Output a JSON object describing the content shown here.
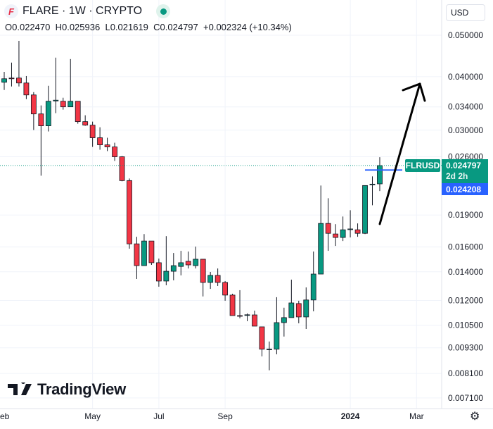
{
  "header": {
    "symbol_title": "FLARE · 1W · CRYPTO",
    "logo_letter": "F",
    "ohlc": {
      "o_label": "O",
      "o": "0.022470",
      "h_label": "H",
      "h": "0.025936",
      "l_label": "L",
      "l": "0.021619",
      "c_label": "C",
      "c": "0.024797",
      "change": "+0.002324 (+10.34%)"
    }
  },
  "currency_select": "USD",
  "branding": "TradingView",
  "price_tags": {
    "symbol": "FLRUSD",
    "last_price": "0.024797",
    "countdown": "2d 2h",
    "line_price": "0.024208",
    "last_value": 0.024797,
    "line_value": 0.024208
  },
  "colors": {
    "up": "#089981",
    "down": "#f23645",
    "line": "#2962ff",
    "grid": "#f0f3fa"
  },
  "chart_data": {
    "type": "candlestick",
    "interval": "1W",
    "yscale": "log",
    "ylim": [
      0.0068,
      0.0535
    ],
    "y_ticks": [
      "0.050000",
      "0.040000",
      "0.034000",
      "0.030000",
      "0.026000",
      "0.019000",
      "0.016000",
      "0.014000",
      "0.012000",
      "0.010500",
      "0.009300",
      "0.008100",
      "0.007100"
    ],
    "x_ticks": [
      {
        "label": "eb",
        "index": 0,
        "bold": false
      },
      {
        "label": "May",
        "index": 12,
        "bold": false
      },
      {
        "label": "Jul",
        "index": 21,
        "bold": false
      },
      {
        "label": "Sep",
        "index": 30,
        "bold": false
      },
      {
        "label": "2024",
        "index": 47,
        "bold": true
      },
      {
        "label": "Mar",
        "index": 56,
        "bold": false
      }
    ],
    "candles": [
      [
        0.03882,
        0.04106,
        0.03724,
        0.03956
      ],
      [
        0.03971,
        0.04315,
        0.03795,
        0.03969
      ],
      [
        0.03971,
        0.04851,
        0.03795,
        0.03867
      ],
      [
        0.03867,
        0.04014,
        0.03545,
        0.03626
      ],
      [
        0.03626,
        0.03681,
        0.03002,
        0.03274
      ],
      [
        0.03274,
        0.03427,
        0.02348,
        0.03071
      ],
      [
        0.03071,
        0.03809,
        0.02979,
        0.03505
      ],
      [
        0.0351,
        0.04432,
        0.03287,
        0.03525
      ],
      [
        0.03505,
        0.03572,
        0.0335,
        0.03401
      ],
      [
        0.03401,
        0.04398,
        0.03401,
        0.03505
      ],
      [
        0.03505,
        0.03505,
        0.03106,
        0.03141
      ],
      [
        0.03141,
        0.0325,
        0.03071,
        0.03082
      ],
      [
        0.03082,
        0.03141,
        0.02741,
        0.0288
      ],
      [
        0.0288,
        0.03047,
        0.027,
        0.02772
      ],
      [
        0.02772,
        0.0288,
        0.0268,
        0.02741
      ],
      [
        0.02741,
        0.02804,
        0.02542,
        0.026
      ],
      [
        0.026,
        0.0261,
        0.02278,
        0.02287
      ],
      [
        0.02287,
        0.02313,
        0.01585,
        0.01627
      ],
      [
        0.01627,
        0.0169,
        0.01347,
        0.01447
      ],
      [
        0.01447,
        0.01715,
        0.01447,
        0.01652
      ],
      [
        0.01652,
        0.01652,
        0.01453,
        0.0147
      ],
      [
        0.0147,
        0.01503,
        0.01292,
        0.01332
      ],
      [
        0.01332,
        0.01696,
        0.01302,
        0.01404
      ],
      [
        0.01404,
        0.01549,
        0.01337,
        0.01447
      ],
      [
        0.01441,
        0.01567,
        0.01373,
        0.0147
      ],
      [
        0.01481,
        0.01561,
        0.01425,
        0.01453
      ],
      [
        0.01447,
        0.01603,
        0.01425,
        0.01498
      ],
      [
        0.01498,
        0.01498,
        0.01226,
        0.01322
      ],
      [
        0.01322,
        0.01399,
        0.01277,
        0.01373
      ],
      [
        0.01373,
        0.01425,
        0.01297,
        0.01322
      ],
      [
        0.01322,
        0.01332,
        0.01198,
        0.01235
      ],
      [
        0.01235,
        0.01244,
        0.01106,
        0.01106
      ],
      [
        0.01106,
        0.01268,
        0.0109,
        0.01104
      ],
      [
        0.01108,
        0.01119,
        0.01073,
        0.01111
      ],
      [
        0.0111,
        0.01136,
        0.01045,
        0.01045
      ],
      [
        0.01041,
        0.01041,
        0.00888,
        0.00923
      ],
      [
        0.00922,
        0.00962,
        0.00824,
        0.00924
      ],
      [
        0.00923,
        0.01221,
        0.00898,
        0.01065
      ],
      [
        0.01065,
        0.01154,
        0.00988,
        0.01094
      ],
      [
        0.01094,
        0.01342,
        0.01094,
        0.01184
      ],
      [
        0.0118,
        0.01198,
        0.01061,
        0.01098
      ],
      [
        0.01098,
        0.01287,
        0.01029,
        0.01203
      ],
      [
        0.01203,
        0.01561,
        0.01132,
        0.01383
      ],
      [
        0.01383,
        0.02227,
        0.01383,
        0.01816
      ],
      [
        0.01816,
        0.0208,
        0.01567,
        0.01722
      ],
      [
        0.01716,
        0.01809,
        0.01609,
        0.01684
      ],
      [
        0.01684,
        0.01885,
        0.01652,
        0.01755
      ],
      [
        0.0176,
        0.0195,
        0.01684,
        0.01763
      ],
      [
        0.01755,
        0.01816,
        0.0169,
        0.01722
      ],
      [
        0.01722,
        0.02227,
        0.01715,
        0.02227
      ],
      [
        0.02235,
        0.02339,
        0.02003,
        0.02244
      ],
      [
        0.02247,
        0.025936,
        0.021619,
        0.024797
      ]
    ],
    "candle_fields": [
      "open",
      "high",
      "low",
      "close"
    ]
  }
}
